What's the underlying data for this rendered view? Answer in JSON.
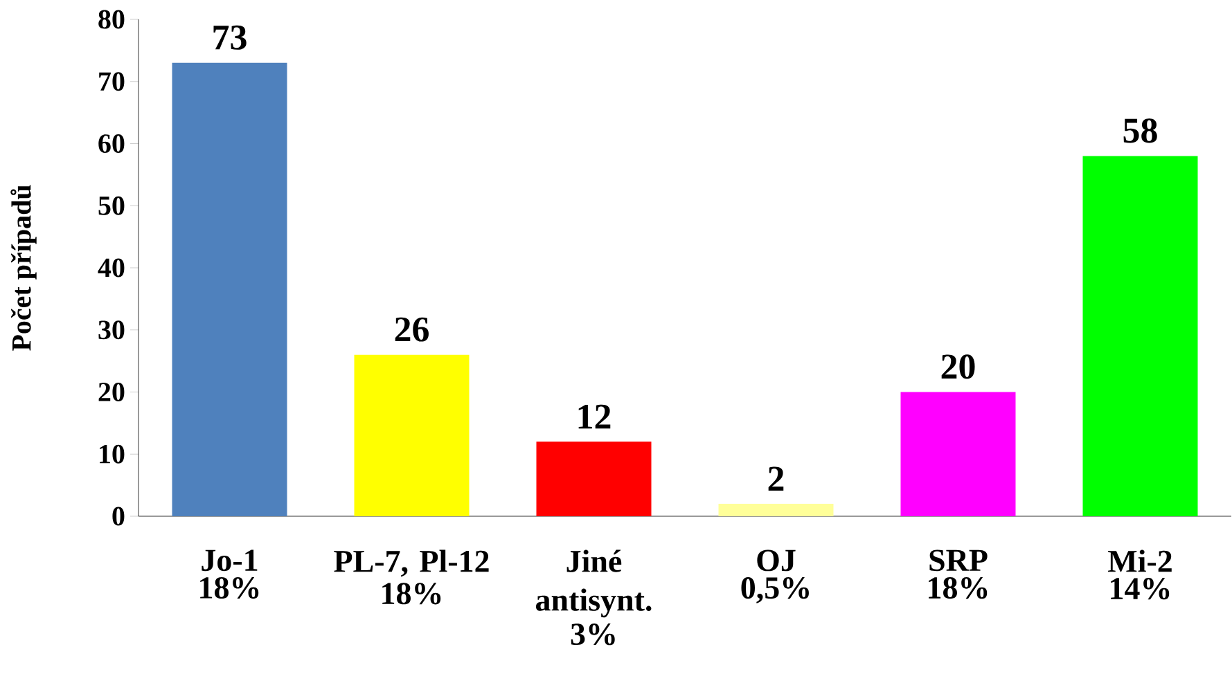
{
  "chart_data": {
    "type": "bar",
    "ylabel": "Počet případů",
    "categories": [
      "Jo-1",
      "PL-7, Pl-12",
      "Jiné antisynt.",
      "OJ",
      "SRP",
      "Mi-2"
    ],
    "values": [
      73,
      26,
      12,
      2,
      20,
      58
    ],
    "colors": [
      "#4f81bd",
      "#ffff00",
      "#ff0000",
      "#ffff99",
      "#ff00ff",
      "#00ff00"
    ],
    "annotations": [
      "18%",
      "18%",
      "3%",
      "0,5%",
      "18%",
      "14%"
    ],
    "ylim": [
      0,
      80
    ],
    "yticks": [
      0,
      10,
      20,
      30,
      40,
      50,
      60,
      70,
      80
    ],
    "data_labels": true,
    "grid": false
  }
}
